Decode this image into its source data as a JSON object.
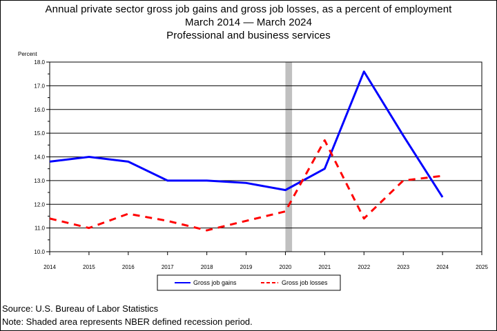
{
  "titles": {
    "line1": "Annual private sector gross job gains and gross job losses, as a percent of employment",
    "line2": "March 2014 — March 2024",
    "line3": "Professional and business services"
  },
  "footer": {
    "source": "Source: U.S. Bureau of Labor Statistics",
    "note": "Note: Shaded area represents NBER defined recession period."
  },
  "chart_data": {
    "type": "line",
    "title": "Annual private sector gross job gains and gross job losses, as a percent of employment",
    "ylabel": "Percent",
    "xlabel": "",
    "xlim": [
      2014,
      2025
    ],
    "ylim": [
      10.0,
      18.0
    ],
    "x_ticks": [
      "2014",
      "2015",
      "2016",
      "2017",
      "2018",
      "2019",
      "2020",
      "2021",
      "2022",
      "2023",
      "2024",
      "2025"
    ],
    "y_ticks": [
      "10.0",
      "11.0",
      "12.0",
      "13.0",
      "14.0",
      "15.0",
      "16.0",
      "17.0",
      "18.0"
    ],
    "grid": "horizontal",
    "recession_shading": {
      "x": 2020.0,
      "width_years": 0.17
    },
    "legend_position": "bottom",
    "series": [
      {
        "name": "Gross job gains",
        "color": "#0000ff",
        "style": "solid",
        "x": [
          2014,
          2015,
          2016,
          2017,
          2018,
          2019,
          2020,
          2021,
          2022,
          2023,
          2024
        ],
        "values": [
          13.8,
          14.0,
          13.8,
          13.0,
          13.0,
          12.9,
          12.6,
          13.5,
          17.6,
          14.9,
          12.3
        ]
      },
      {
        "name": "Gross job losses",
        "color": "#ff0000",
        "style": "dashed",
        "x": [
          2014,
          2015,
          2016,
          2017,
          2018,
          2019,
          2020,
          2021,
          2022,
          2023,
          2024
        ],
        "values": [
          11.4,
          11.0,
          11.6,
          11.3,
          10.9,
          11.3,
          11.7,
          14.7,
          11.4,
          13.0,
          13.2
        ]
      }
    ]
  }
}
